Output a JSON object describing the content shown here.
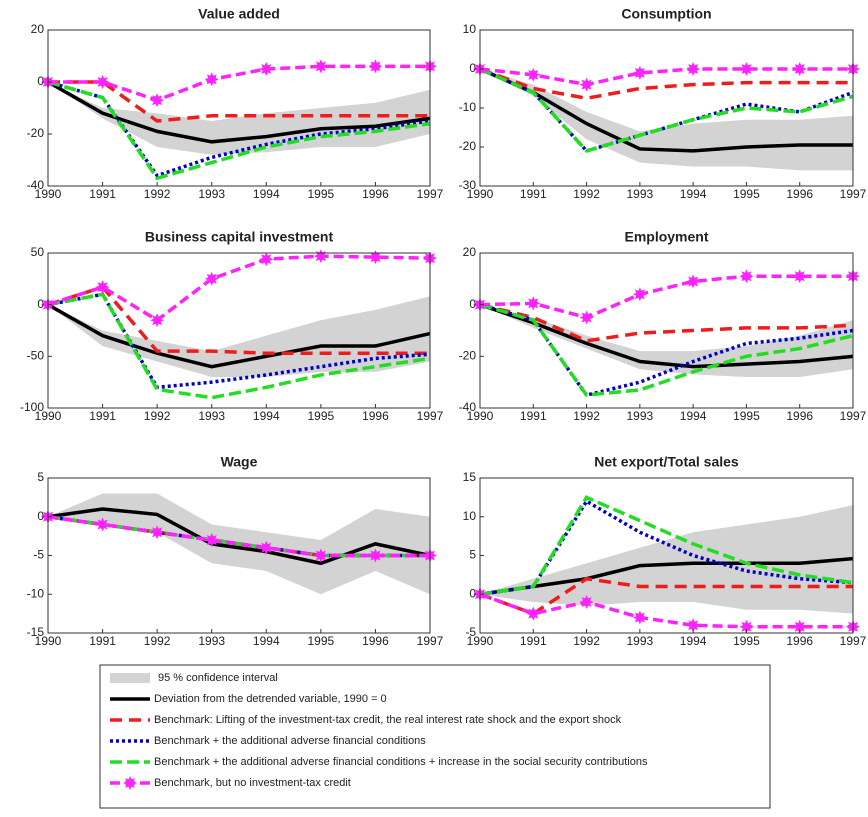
{
  "legend": {
    "band": {
      "name": "95 % confidence interval",
      "color": "#d3d3d3"
    },
    "series": [
      {
        "name": "Deviation from the detrended variable, 1990 = 0",
        "color": "#000000"
      },
      {
        "name": "Benchmark: Lifting of the investment-tax credit, the real interest rate shock and the export shock",
        "color": "#ee1c1c"
      },
      {
        "name": "Benchmark + the additional adverse financial conditions",
        "color": "#0000c8"
      },
      {
        "name": "Benchmark + the additional adverse financial conditions + increase in the social security contributions",
        "color": "#22dd22"
      },
      {
        "name": "Benchmark, but no investment-tax credit",
        "color": "#ff22ff"
      }
    ]
  },
  "chart_data": [
    {
      "type": "line",
      "title": "Value added",
      "x": [
        1990,
        1991,
        1992,
        1993,
        1994,
        1995,
        1996,
        1997
      ],
      "xlim": [
        1990,
        1997
      ],
      "xticks": [
        1990,
        1991,
        1992,
        1993,
        1994,
        1995,
        1996,
        1997
      ],
      "ylim": [
        -40,
        20
      ],
      "yticks": [
        -40,
        -20,
        0,
        20
      ],
      "band": {
        "upper": [
          0,
          -10,
          -12,
          -15,
          -12,
          -10,
          -8,
          -3
        ],
        "lower": [
          0,
          -14,
          -25,
          -28,
          -27,
          -25,
          -25,
          -20
        ]
      },
      "series": [
        {
          "values": [
            0,
            -12,
            -19,
            -23,
            -21,
            -18,
            -17,
            -14
          ]
        },
        {
          "values": [
            0,
            0,
            -15,
            -13,
            -13,
            -13,
            -13,
            -13
          ]
        },
        {
          "values": [
            0,
            -6,
            -36,
            -29,
            -24,
            -20,
            -18,
            -15
          ]
        },
        {
          "values": [
            0,
            -6,
            -37,
            -31,
            -25,
            -21,
            -19,
            -16
          ]
        },
        {
          "values": [
            0,
            0,
            -7,
            1,
            5,
            6,
            6,
            6
          ]
        }
      ]
    },
    {
      "type": "line",
      "title": "Consumption",
      "x": [
        1990,
        1991,
        1992,
        1993,
        1994,
        1995,
        1996,
        1997
      ],
      "xlim": [
        1990,
        1997
      ],
      "xticks": [
        1990,
        1991,
        1992,
        1993,
        1994,
        1995,
        1996,
        1997
      ],
      "ylim": [
        -30,
        10
      ],
      "yticks": [
        -30,
        -20,
        -10,
        0,
        10
      ],
      "band": {
        "upper": [
          0,
          -4,
          -11,
          -16,
          -14,
          -13,
          -13,
          -12
        ],
        "lower": [
          0,
          -7,
          -18,
          -24,
          -25,
          -25,
          -26,
          -26
        ]
      },
      "series": [
        {
          "values": [
            0,
            -6,
            -14,
            -20.5,
            -21,
            -20,
            -19.5,
            -19.5
          ]
        },
        {
          "values": [
            0,
            -5,
            -7.5,
            -5,
            -4,
            -3.5,
            -3.5,
            -3.5
          ]
        },
        {
          "values": [
            0,
            -6,
            -21,
            -17,
            -13,
            -9,
            -11,
            -6
          ]
        },
        {
          "values": [
            0,
            -6,
            -21,
            -17,
            -13,
            -10,
            -11,
            -7
          ]
        },
        {
          "values": [
            0,
            -1.5,
            -4,
            -1,
            0,
            0,
            0,
            0
          ]
        }
      ]
    },
    {
      "type": "line",
      "title": "Business capital investment",
      "x": [
        1990,
        1991,
        1992,
        1993,
        1994,
        1995,
        1996,
        1997
      ],
      "xlim": [
        1990,
        1997
      ],
      "xticks": [
        1990,
        1991,
        1992,
        1993,
        1994,
        1995,
        1996,
        1997
      ],
      "ylim": [
        -100,
        50
      ],
      "yticks": [
        -100,
        -50,
        0,
        50
      ],
      "band": {
        "upper": [
          0,
          -25,
          -35,
          -45,
          -30,
          -15,
          -5,
          8
        ],
        "lower": [
          0,
          -40,
          -55,
          -70,
          -70,
          -65,
          -65,
          -55
        ]
      },
      "series": [
        {
          "values": [
            0,
            -30,
            -47,
            -60,
            -50,
            -40,
            -40,
            -28
          ]
        },
        {
          "values": [
            0,
            17,
            -45,
            -45,
            -47,
            -47,
            -47,
            -47
          ]
        },
        {
          "values": [
            0,
            10,
            -80,
            -75,
            -68,
            -60,
            -52,
            -48
          ]
        },
        {
          "values": [
            0,
            10,
            -82,
            -90,
            -80,
            -68,
            -60,
            -52
          ]
        },
        {
          "values": [
            0,
            17,
            -15,
            25,
            44,
            47,
            46,
            45
          ]
        }
      ]
    },
    {
      "type": "line",
      "title": "Employment",
      "x": [
        1990,
        1991,
        1992,
        1993,
        1994,
        1995,
        1996,
        1997
      ],
      "xlim": [
        1990,
        1997
      ],
      "xticks": [
        1990,
        1991,
        1992,
        1993,
        1994,
        1995,
        1996,
        1997
      ],
      "ylim": [
        -40,
        20
      ],
      "yticks": [
        -40,
        -20,
        0,
        20
      ],
      "band": {
        "upper": [
          0,
          -5,
          -12,
          -18,
          -18,
          -16,
          -12,
          -6
        ],
        "lower": [
          0,
          -9,
          -17,
          -25,
          -27,
          -28,
          -28,
          -25
        ]
      },
      "series": [
        {
          "values": [
            0,
            -7,
            -15,
            -22,
            -24,
            -23,
            -22,
            -20
          ]
        },
        {
          "values": [
            0,
            -5,
            -14,
            -11,
            -10,
            -9,
            -9,
            -8
          ]
        },
        {
          "values": [
            0,
            -6,
            -35,
            -30,
            -22,
            -15,
            -13,
            -10
          ]
        },
        {
          "values": [
            0,
            -6,
            -35,
            -33,
            -26,
            -20,
            -17,
            -12
          ]
        },
        {
          "values": [
            0,
            0.5,
            -5,
            4,
            9,
            11,
            11,
            11
          ]
        }
      ]
    },
    {
      "type": "line",
      "title": "Wage",
      "x": [
        1990,
        1991,
        1992,
        1993,
        1994,
        1995,
        1996,
        1997
      ],
      "xlim": [
        1990,
        1997
      ],
      "xticks": [
        1990,
        1991,
        1992,
        1993,
        1994,
        1995,
        1996,
        1997
      ],
      "ylim": [
        -15,
        5
      ],
      "yticks": [
        -15,
        -10,
        -5,
        0,
        5
      ],
      "band": {
        "upper": [
          0,
          3,
          3,
          -1,
          -2,
          -3,
          1,
          0
        ],
        "lower": [
          0,
          -1,
          -2,
          -6,
          -7,
          -10,
          -7,
          -10
        ]
      },
      "series": [
        {
          "values": [
            0,
            1,
            0.3,
            -3.5,
            -4.5,
            -6,
            -3.5,
            -5
          ]
        },
        {
          "values": [
            0,
            -1,
            -2,
            -3,
            -4,
            -5,
            -5,
            -5
          ]
        },
        {
          "values": [
            0,
            -1,
            -2,
            -3,
            -4,
            -5,
            -5,
            -5
          ]
        },
        {
          "values": [
            0,
            -1,
            -2,
            -3,
            -4,
            -5,
            -5,
            -5
          ]
        },
        {
          "values": [
            0,
            -1,
            -2,
            -3,
            -4,
            -5,
            -5,
            -5
          ]
        }
      ]
    },
    {
      "type": "line",
      "title": "Net export/Total sales",
      "x": [
        1990,
        1991,
        1992,
        1993,
        1994,
        1995,
        1996,
        1997
      ],
      "xlim": [
        1990,
        1997
      ],
      "xticks": [
        1990,
        1991,
        1992,
        1993,
        1994,
        1995,
        1996,
        1997
      ],
      "ylim": [
        -5,
        15
      ],
      "yticks": [
        -5,
        0,
        5,
        10,
        15
      ],
      "band": {
        "upper": [
          0,
          2,
          4,
          6,
          8,
          9,
          10,
          11.5
        ],
        "lower": [
          0,
          -1,
          -1.5,
          -1,
          -1,
          -2,
          -2,
          -2.5
        ]
      },
      "series": [
        {
          "values": [
            0,
            1,
            2,
            3.7,
            4,
            4,
            4,
            4.6
          ]
        },
        {
          "values": [
            0,
            -2.5,
            2,
            1,
            1,
            1,
            1,
            1
          ]
        },
        {
          "values": [
            0,
            1,
            12,
            8,
            5,
            3,
            2,
            1.5
          ]
        },
        {
          "values": [
            0,
            1,
            12.5,
            9.5,
            6.5,
            4,
            2.5,
            1.5
          ]
        },
        {
          "values": [
            0,
            -2.5,
            -1,
            -3,
            -4,
            -4.2,
            -4.2,
            -4.2
          ]
        }
      ]
    }
  ]
}
